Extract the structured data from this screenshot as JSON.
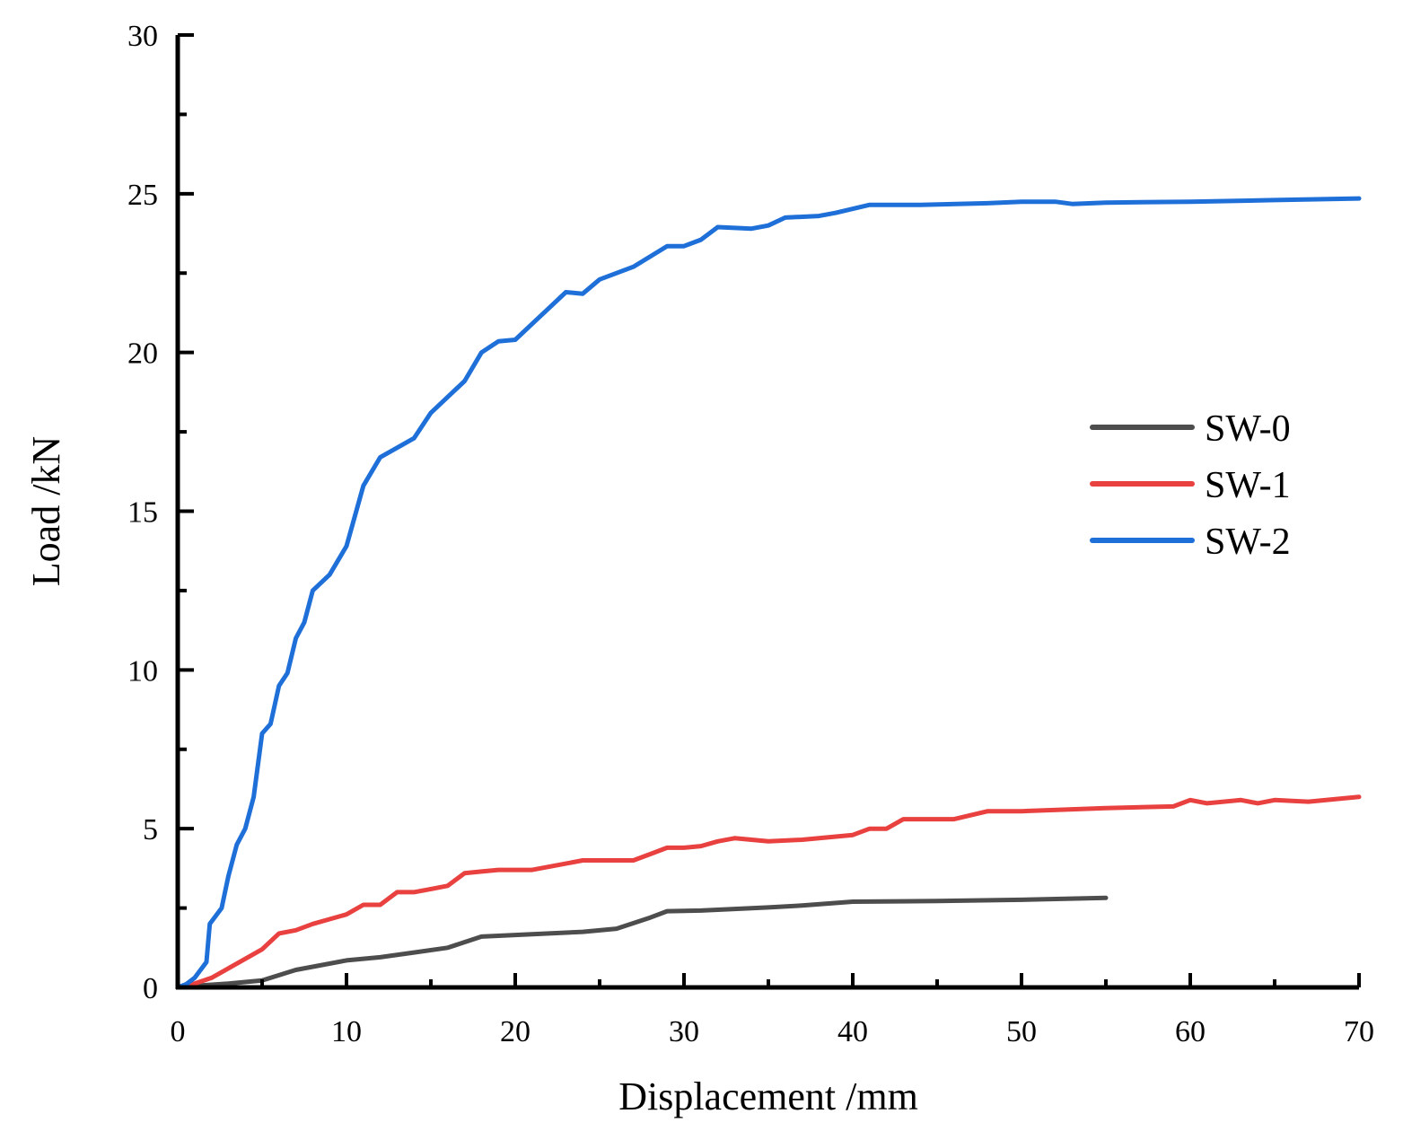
{
  "chart_data": {
    "type": "line",
    "title": "",
    "xlabel": "Displacement /mm",
    "ylabel": "Load /kN",
    "xlim": [
      0,
      70
    ],
    "ylim": [
      0,
      30
    ],
    "xticks": [
      0,
      10,
      20,
      30,
      40,
      50,
      60,
      70
    ],
    "yticks": [
      0,
      5,
      10,
      15,
      20,
      25,
      30
    ],
    "xtick_labels": [
      "0",
      "10",
      "20",
      "30",
      "40",
      "50",
      "60",
      "70"
    ],
    "ytick_labels": [
      "0",
      "5",
      "10",
      "15",
      "20",
      "25",
      "30"
    ],
    "grid": false,
    "legend_position": "right",
    "series": [
      {
        "name": "SW-0",
        "color": "#4d4d4d",
        "points": [
          [
            0,
            0
          ],
          [
            1,
            0.05
          ],
          [
            3,
            0.12
          ],
          [
            5,
            0.22
          ],
          [
            7,
            0.55
          ],
          [
            8,
            0.65
          ],
          [
            10,
            0.85
          ],
          [
            12,
            0.95
          ],
          [
            14,
            1.1
          ],
          [
            16,
            1.25
          ],
          [
            18,
            1.6
          ],
          [
            20,
            1.65
          ],
          [
            22,
            1.7
          ],
          [
            24,
            1.75
          ],
          [
            26,
            1.85
          ],
          [
            28,
            2.2
          ],
          [
            29,
            2.4
          ],
          [
            31,
            2.42
          ],
          [
            33,
            2.47
          ],
          [
            35,
            2.52
          ],
          [
            37,
            2.58
          ],
          [
            40,
            2.7
          ],
          [
            45,
            2.72
          ],
          [
            50,
            2.76
          ],
          [
            55,
            2.82
          ]
        ]
      },
      {
        "name": "SW-1",
        "color": "#e8413f",
        "points": [
          [
            0,
            0
          ],
          [
            1,
            0.12
          ],
          [
            2,
            0.3
          ],
          [
            3,
            0.6
          ],
          [
            4,
            0.9
          ],
          [
            5,
            1.2
          ],
          [
            6,
            1.7
          ],
          [
            7,
            1.8
          ],
          [
            8,
            2.0
          ],
          [
            9,
            2.15
          ],
          [
            10,
            2.3
          ],
          [
            11,
            2.6
          ],
          [
            12,
            2.6
          ],
          [
            13,
            3.0
          ],
          [
            14,
            3.0
          ],
          [
            15,
            3.1
          ],
          [
            16,
            3.2
          ],
          [
            17,
            3.6
          ],
          [
            18,
            3.65
          ],
          [
            19,
            3.7
          ],
          [
            21,
            3.7
          ],
          [
            22,
            3.8
          ],
          [
            24,
            4.0
          ],
          [
            27,
            4.0
          ],
          [
            28,
            4.2
          ],
          [
            29,
            4.4
          ],
          [
            30,
            4.4
          ],
          [
            31,
            4.45
          ],
          [
            32,
            4.6
          ],
          [
            33,
            4.7
          ],
          [
            35,
            4.6
          ],
          [
            37,
            4.65
          ],
          [
            40,
            4.8
          ],
          [
            41,
            5.0
          ],
          [
            42,
            5.0
          ],
          [
            43,
            5.3
          ],
          [
            46,
            5.3
          ],
          [
            48,
            5.55
          ],
          [
            50,
            5.55
          ],
          [
            55,
            5.65
          ],
          [
            59,
            5.7
          ],
          [
            60,
            5.9
          ],
          [
            61,
            5.8
          ],
          [
            63,
            5.9
          ],
          [
            64,
            5.8
          ],
          [
            65,
            5.9
          ],
          [
            67,
            5.85
          ],
          [
            70,
            6.0
          ]
        ]
      },
      {
        "name": "SW-2",
        "color": "#1f6fd9",
        "points": [
          [
            0,
            0
          ],
          [
            0.5,
            0.1
          ],
          [
            1,
            0.3
          ],
          [
            1.7,
            0.8
          ],
          [
            1.9,
            2.0
          ],
          [
            2.6,
            2.5
          ],
          [
            3,
            3.5
          ],
          [
            3.5,
            4.5
          ],
          [
            4,
            5.0
          ],
          [
            4.5,
            6.0
          ],
          [
            5,
            8.0
          ],
          [
            5.5,
            8.3
          ],
          [
            6,
            9.5
          ],
          [
            6.5,
            9.9
          ],
          [
            7,
            11.0
          ],
          [
            7.5,
            11.5
          ],
          [
            8,
            12.5
          ],
          [
            9,
            13.0
          ],
          [
            10,
            13.9
          ],
          [
            11,
            15.8
          ],
          [
            12,
            16.7
          ],
          [
            13,
            17.0
          ],
          [
            14,
            17.3
          ],
          [
            15,
            18.1
          ],
          [
            16,
            18.6
          ],
          [
            17,
            19.1
          ],
          [
            18,
            20.0
          ],
          [
            19,
            20.35
          ],
          [
            20,
            20.4
          ],
          [
            21,
            20.9
          ],
          [
            22,
            21.4
          ],
          [
            23,
            21.9
          ],
          [
            24,
            21.85
          ],
          [
            25,
            22.3
          ],
          [
            27,
            22.7
          ],
          [
            29,
            23.35
          ],
          [
            30,
            23.35
          ],
          [
            31,
            23.55
          ],
          [
            32,
            23.95
          ],
          [
            34,
            23.9
          ],
          [
            35,
            24.0
          ],
          [
            36,
            24.25
          ],
          [
            38,
            24.3
          ],
          [
            39,
            24.4
          ],
          [
            41,
            24.65
          ],
          [
            44,
            24.65
          ],
          [
            48,
            24.7
          ],
          [
            50,
            24.75
          ],
          [
            52,
            24.75
          ],
          [
            53,
            24.68
          ],
          [
            55,
            24.72
          ],
          [
            60,
            24.75
          ],
          [
            65,
            24.8
          ],
          [
            70,
            24.85
          ]
        ]
      }
    ]
  }
}
